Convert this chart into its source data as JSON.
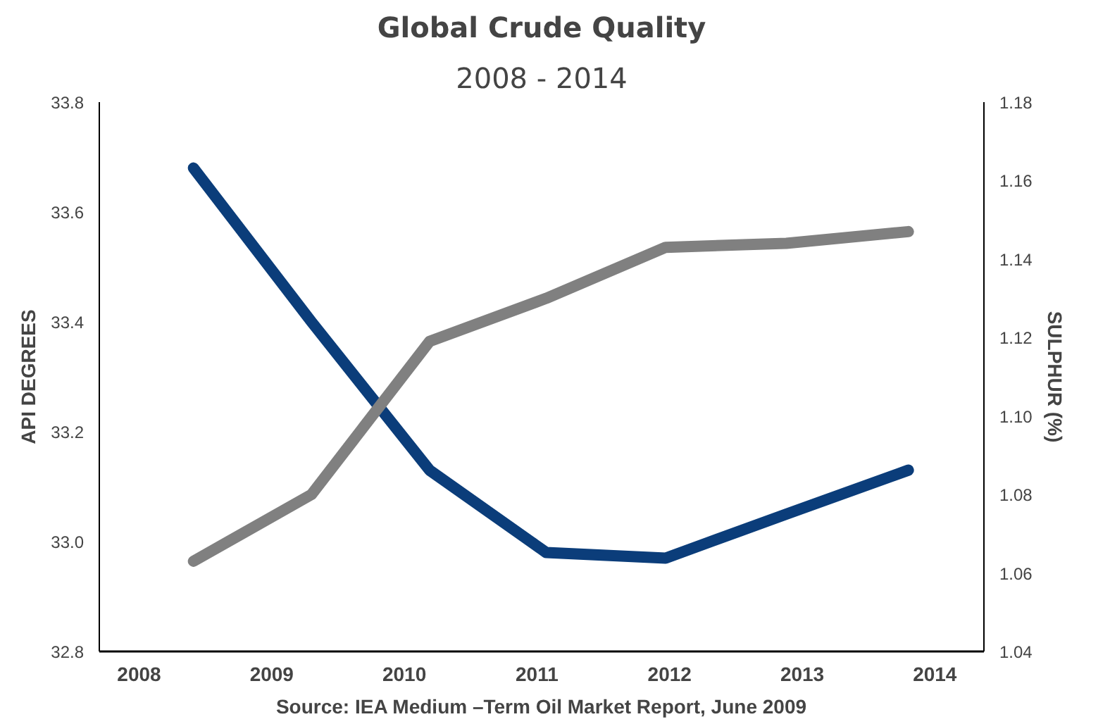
{
  "chart_data": {
    "type": "line",
    "title": "Global Crude Quality",
    "subtitle": "2008 - 2014",
    "ylabel": "API DEGREES",
    "y2label": "SULPHUR (%)",
    "x": [
      2008.41,
      2009.3,
      2010.19,
      2011.07,
      2011.97,
      2012.88,
      2013.8
    ],
    "series": [
      {
        "color": "#0b3d7a",
        "values": [
          33.68,
          33.4,
          33.13,
          32.98,
          32.97,
          33.05,
          33.13
        ]
      },
      {
        "color": "#808080",
        "axis": "y2",
        "values": [
          1.063,
          1.08,
          1.119,
          1.13,
          1.143,
          1.144,
          1.147
        ]
      }
    ],
    "xlim": [
      2007.7,
      2014.37
    ],
    "xticks": [
      2008,
      2009,
      2010,
      2011,
      2012,
      2013,
      2014
    ],
    "ylim": [
      32.8,
      33.8
    ],
    "yticks": [
      {
        "value": 32.8,
        "label": "32.8"
      },
      {
        "value": 33.0,
        "label": "33.0"
      },
      {
        "value": 33.2,
        "label": "33.2"
      },
      {
        "value": 33.4,
        "label": "33.4"
      },
      {
        "value": 33.6,
        "label": "33.6"
      },
      {
        "value": 33.8,
        "label": "33.8"
      }
    ],
    "y2lim": [
      1.04,
      1.18
    ],
    "y2ticks": [
      {
        "value": 1.04,
        "label": "1.04"
      },
      {
        "value": 1.06,
        "label": "1.06"
      },
      {
        "value": 1.08,
        "label": "1.08"
      },
      {
        "value": 1.1,
        "label": "1.10"
      },
      {
        "value": 1.12,
        "label": "1.12"
      },
      {
        "value": 1.14,
        "label": "1.14"
      },
      {
        "value": 1.16,
        "label": "1.16"
      },
      {
        "value": 1.18,
        "label": "1.18"
      }
    ],
    "grid": false,
    "line_style": "solid",
    "marker": "none",
    "annotations": [
      "Source: IEA Medium –Term Oil Market Report, June 2009"
    ]
  }
}
